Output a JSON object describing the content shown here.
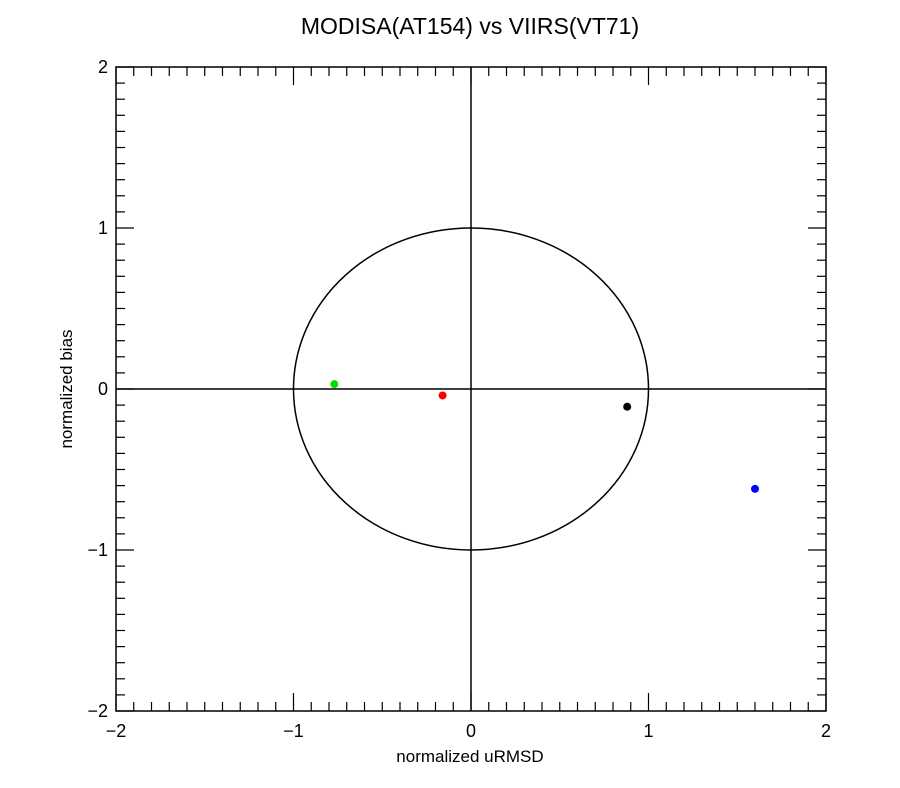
{
  "chart_data": {
    "type": "scatter",
    "title": "MODISA(AT154) vs VIIRS(VT71)",
    "xlabel": "normalized uRMSD",
    "ylabel": "normalized bias",
    "xlim": [
      -2,
      2
    ],
    "ylim": [
      -2,
      2
    ],
    "xticks": [
      -2,
      -1,
      0,
      1,
      2
    ],
    "yticks": [
      -2,
      -1,
      0,
      1,
      2
    ],
    "xtick_labels": [
      "−2",
      "−1",
      "0",
      "1",
      "2"
    ],
    "ytick_labels": [
      "−2",
      "−1",
      "0",
      "1",
      "2"
    ],
    "minor_ticks_per_major": 10,
    "reference_circle_radius": 1,
    "zero_lines": true,
    "grid": false,
    "points": [
      {
        "x": -0.77,
        "y": 0.03,
        "color": "#00dd00"
      },
      {
        "x": -0.16,
        "y": -0.04,
        "color": "#ff0000"
      },
      {
        "x": 0.88,
        "y": -0.11,
        "color": "#000000"
      },
      {
        "x": 1.6,
        "y": -0.62,
        "color": "#0000ff"
      }
    ]
  }
}
